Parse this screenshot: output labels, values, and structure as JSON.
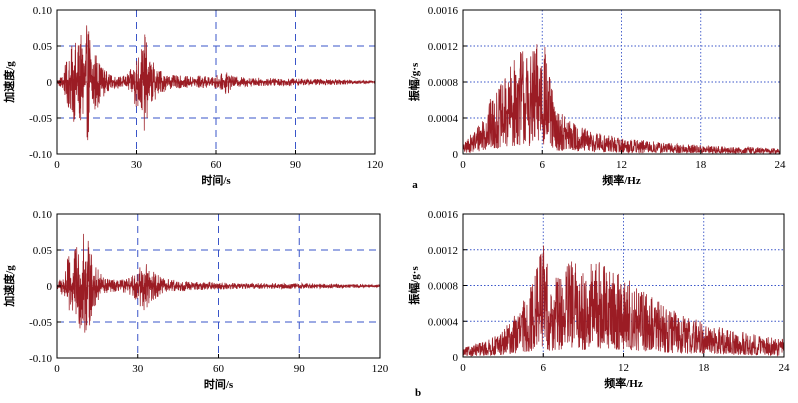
{
  "chart_data": [
    {
      "id": "a-time",
      "type": "line",
      "panel": "a",
      "xlabel": "时间/s",
      "ylabel": "加速度/g",
      "xlim": [
        0,
        120
      ],
      "ylim": [
        -0.1,
        0.1
      ],
      "xticks": [
        0,
        30,
        60,
        90,
        120
      ],
      "yticks": [
        -0.1,
        -0.05,
        0,
        0.05,
        0.1
      ],
      "xtick_labels": [
        "0",
        "30",
        "60",
        "90",
        "120"
      ],
      "ytick_labels": [
        "-0.10",
        "-0.05",
        "0",
        "0.05",
        "0.10"
      ],
      "grid": "dashed blue at x=30,60,90 and y=±0.05",
      "series": [
        {
          "color": "#9b1c24",
          "envelope": [
            [
              0,
              0.004
            ],
            [
              2,
              0.01
            ],
            [
              4,
              0.035
            ],
            [
              6,
              0.055
            ],
            [
              8,
              0.06
            ],
            [
              10,
              0.07
            ],
            [
              12,
              0.085
            ],
            [
              14,
              0.05
            ],
            [
              16,
              0.03
            ],
            [
              18,
              0.018
            ],
            [
              20,
              0.01
            ],
            [
              24,
              0.008
            ],
            [
              26,
              0.01
            ],
            [
              28,
              0.018
            ],
            [
              30,
              0.04
            ],
            [
              32,
              0.05
            ],
            [
              33,
              0.07
            ],
            [
              35,
              0.035
            ],
            [
              38,
              0.02
            ],
            [
              42,
              0.01
            ],
            [
              50,
              0.008
            ],
            [
              55,
              0.01
            ],
            [
              58,
              0.006
            ],
            [
              60,
              0.01
            ],
            [
              63,
              0.012
            ],
            [
              64,
              0.02
            ],
            [
              66,
              0.008
            ],
            [
              75,
              0.006
            ],
            [
              90,
              0.005
            ],
            [
              105,
              0.004
            ],
            [
              120,
              0.002
            ]
          ]
        }
      ]
    },
    {
      "id": "a-freq",
      "type": "line",
      "panel": "a",
      "xlabel": "频率/Hz",
      "ylabel": "振幅/g·s",
      "xlim": [
        0,
        24
      ],
      "ylim": [
        0,
        0.0016
      ],
      "xticks": [
        0,
        6,
        12,
        18,
        24
      ],
      "yticks": [
        0,
        0.0004,
        0.0008,
        0.0012,
        0.0016
      ],
      "xtick_labels": [
        "0",
        "6",
        "12",
        "18",
        "24"
      ],
      "ytick_labels": [
        "0",
        "0.0004",
        "0.0008",
        "0.0012",
        "0.0016"
      ],
      "grid": "dotted blue at x=6,12,18 and y=0.0004,0.0008,0.0012",
      "series": [
        {
          "color": "#9b1c24",
          "envelope": [
            [
              0,
              0.0001
            ],
            [
              1,
              0.0003
            ],
            [
              2,
              0.0006
            ],
            [
              3,
              0.0008
            ],
            [
              4,
              0.0011
            ],
            [
              4.5,
              0.00125
            ],
            [
              5,
              0.0011
            ],
            [
              5.5,
              0.0012
            ],
            [
              6,
              0.0014
            ],
            [
              6.5,
              0.00095
            ],
            [
              7,
              0.0005
            ],
            [
              8,
              0.0004
            ],
            [
              9,
              0.0003
            ],
            [
              10,
              0.00025
            ],
            [
              12,
              0.00018
            ],
            [
              14,
              0.00015
            ],
            [
              16,
              0.00012
            ],
            [
              18,
              0.0001
            ],
            [
              20,
              8e-05
            ],
            [
              22,
              8e-05
            ],
            [
              24,
              6e-05
            ]
          ]
        }
      ]
    },
    {
      "id": "b-time",
      "type": "line",
      "panel": "b",
      "xlabel": "时间/s",
      "ylabel": "加速度/g",
      "xlim": [
        0,
        120
      ],
      "ylim": [
        -0.1,
        0.1
      ],
      "xticks": [
        0,
        30,
        60,
        90,
        120
      ],
      "yticks": [
        -0.1,
        -0.05,
        0,
        0.05,
        0.1
      ],
      "xtick_labels": [
        "0",
        "30",
        "60",
        "90",
        "120"
      ],
      "ytick_labels": [
        "-0.10",
        "-0.05",
        "0",
        "0.05",
        "0.10"
      ],
      "grid": "dashed blue at x=30,60,90 and y=±0.05",
      "series": [
        {
          "color": "#9b1c24",
          "envelope": [
            [
              0,
              0.004
            ],
            [
              2,
              0.015
            ],
            [
              4,
              0.04
            ],
            [
              6,
              0.05
            ],
            [
              8,
              0.06
            ],
            [
              10,
              0.075
            ],
            [
              12,
              0.06
            ],
            [
              14,
              0.03
            ],
            [
              16,
              0.02
            ],
            [
              18,
              0.012
            ],
            [
              22,
              0.008
            ],
            [
              26,
              0.01
            ],
            [
              28,
              0.015
            ],
            [
              30,
              0.025
            ],
            [
              32,
              0.035
            ],
            [
              34,
              0.03
            ],
            [
              36,
              0.02
            ],
            [
              40,
              0.01
            ],
            [
              50,
              0.006
            ],
            [
              70,
              0.004
            ],
            [
              90,
              0.004
            ],
            [
              105,
              0.003
            ],
            [
              120,
              0.002
            ]
          ]
        }
      ]
    },
    {
      "id": "b-freq",
      "type": "line",
      "panel": "b",
      "xlabel": "频率/Hz",
      "ylabel": "振幅/g·s",
      "xlim": [
        0,
        24
      ],
      "ylim": [
        0,
        0.0016
      ],
      "xticks": [
        0,
        6,
        12,
        18,
        24
      ],
      "yticks": [
        0,
        0.0004,
        0.0008,
        0.0012,
        0.0016
      ],
      "xtick_labels": [
        "0",
        "6",
        "12",
        "18",
        "24"
      ],
      "ytick_labels": [
        "0",
        "0.0004",
        "0.0008",
        "0.0012",
        "0.0016"
      ],
      "grid": "dotted blue at x=6,12,18 and y=0.0004,0.0008,0.0012",
      "series": [
        {
          "color": "#9b1c24",
          "envelope": [
            [
              0,
              0.0001
            ],
            [
              2,
              0.0002
            ],
            [
              3,
              0.0003
            ],
            [
              4,
              0.0005
            ],
            [
              5,
              0.00075
            ],
            [
              6,
              0.0014
            ],
            [
              6.5,
              0.0008
            ],
            [
              7,
              0.0009
            ],
            [
              8,
              0.0011
            ],
            [
              9,
              0.001
            ],
            [
              10,
              0.0011
            ],
            [
              11,
              0.001
            ],
            [
              12,
              0.0009
            ],
            [
              13,
              0.0008
            ],
            [
              14,
              0.0007
            ],
            [
              15,
              0.0006
            ],
            [
              16,
              0.0005
            ],
            [
              17,
              0.00045
            ],
            [
              18,
              0.0004
            ],
            [
              20,
              0.0003
            ],
            [
              22,
              0.00025
            ],
            [
              24,
              0.0002
            ]
          ]
        }
      ]
    }
  ],
  "panel_labels": {
    "a": "a",
    "b": "b"
  },
  "colors": {
    "signal": "#9b1c24",
    "grid": "#3a55c8",
    "axis": "#000000"
  }
}
